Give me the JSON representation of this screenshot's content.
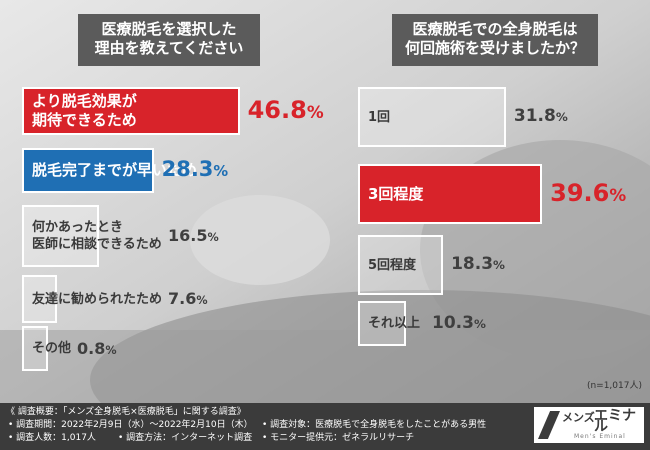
{
  "left_title": [
    "医療脱毛を選択した",
    "理由を教えてください"
  ],
  "right_title": [
    "医療脱毛での全身脱毛は",
    "何回施術を受けましたか？"
  ],
  "colors": {
    "highlight_red": "#d8232a",
    "highlight_blue": "#1f6fb4",
    "footer_bg": "#3b3b3b",
    "title_bg": "#5b5b5b"
  },
  "chart_data": [
    {
      "type": "bar",
      "orientation": "horizontal",
      "title": "医療脱毛を選択した理由を教えてください",
      "categories": [
        "より脱毛効果が期待できるため",
        "脱毛完了までが早いため",
        "何かあったとき医師に相談できるため",
        "友達に勧められたため",
        "その他"
      ],
      "category_lines": [
        [
          "より脱毛効果が",
          "期待できるため"
        ],
        [
          "脱毛完了までが早いため"
        ],
        [
          "何かあったとき",
          "医師に相談できるため"
        ],
        [
          "友達に勧められたため"
        ],
        [
          "その他"
        ]
      ],
      "values": [
        46.8,
        28.3,
        16.5,
        7.6,
        0.8
      ],
      "labels": [
        "46.8%",
        "28.3%",
        "16.5%",
        "7.6%",
        "0.8%"
      ],
      "highlight": [
        "red",
        "blue",
        "none",
        "none",
        "none"
      ],
      "unit": "%"
    },
    {
      "type": "bar",
      "orientation": "horizontal",
      "title": "医療脱毛での全身脱毛は何回施術を受けましたか？",
      "categories": [
        "1回",
        "3回程度",
        "5回程度",
        "それ以上"
      ],
      "category_lines": [
        [
          "1回"
        ],
        [
          "3回程度"
        ],
        [
          "5回程度"
        ],
        [
          "それ以上"
        ]
      ],
      "values": [
        31.8,
        39.6,
        18.3,
        10.3
      ],
      "labels": [
        "31.8%",
        "39.6%",
        "18.3%",
        "10.3%"
      ],
      "highlight": [
        "none",
        "red",
        "none",
        "none"
      ],
      "unit": "%"
    }
  ],
  "sample_note": "(n=1,017人)",
  "footer": {
    "line1": "《 調査概要：「メンズ全身脱毛×医療脱毛」に関する調査》",
    "line2": "• 調査期間：2022年2月9日（水）～2022年2月10日（木）",
    "line3a": "• 調査人数：1,017人",
    "line3b": "• 調査方法：インターネット調査",
    "line4": "• 調査対象：医療脱毛で全身脱毛をしたことがある男性",
    "line5": "• モニター提供元：ゼネラルリサーチ"
  },
  "logo": {
    "part1": "メンズ",
    "part2": "エミナル",
    "sub": "Men's Eminal"
  }
}
